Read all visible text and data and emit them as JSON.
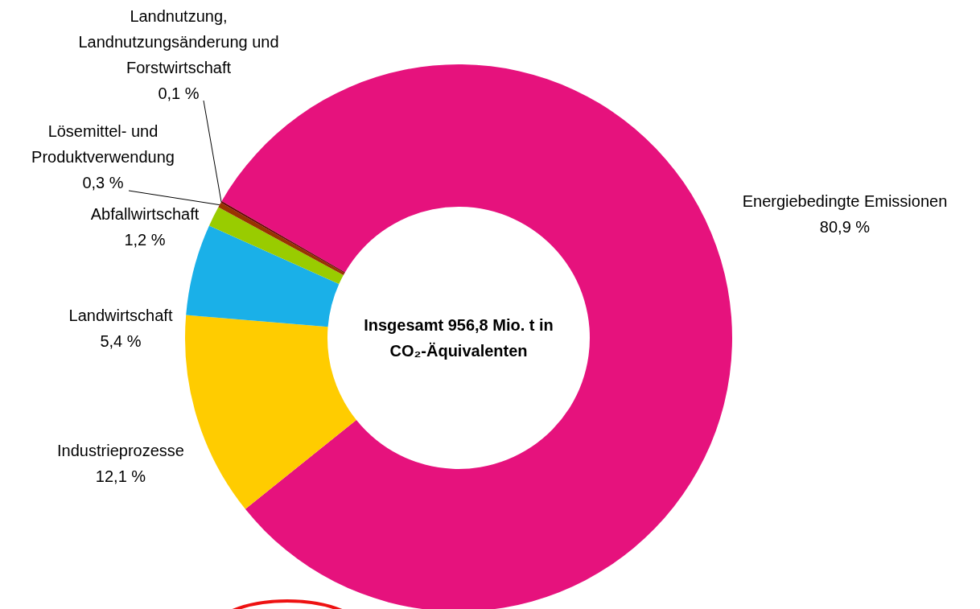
{
  "chart_data": {
    "type": "donut",
    "categories": [
      "Energiebedingte Emissionen",
      "Industrieprozesse",
      "Landwirtschaft",
      "Abfallwirtschaft",
      "Lösemittel- und Produktverwendung",
      "Landnutzung, Landnutzungsänderung und Forstwirtschaft"
    ],
    "values": [
      80.9,
      12.1,
      5.4,
      1.2,
      0.3,
      0.1
    ],
    "colors": [
      "#e6127d",
      "#ffcc00",
      "#1ab0e8",
      "#99cc00",
      "#993300",
      "#660000"
    ],
    "value_labels": [
      "80,9 %",
      "12,1 %",
      "5,4 %",
      "1,2 %",
      "0,3 %",
      "0,1 %"
    ],
    "annotations": [
      "Insgesamt 956,8 Mio. t in CO₂-Äquivalenten"
    ]
  }
}
